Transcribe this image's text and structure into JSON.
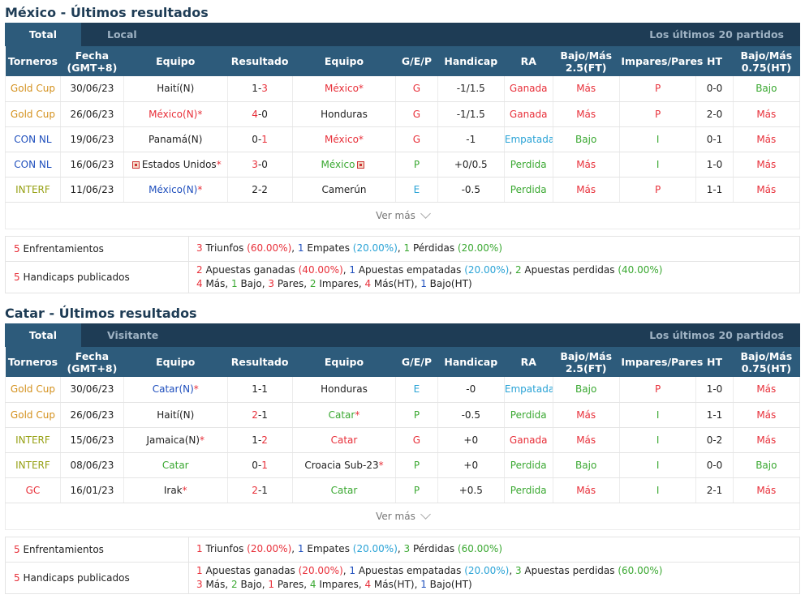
{
  "mexico": {
    "title": "México - Últimos resultados",
    "tabs": {
      "active": "Total",
      "inactive": "Local",
      "right": "Los últimos 20 partidos"
    },
    "headers": [
      "Torneros",
      "Fecha\n(GMT+8)",
      "Equipo",
      "Resultado",
      "Equipo",
      "G/E/P",
      "Handicap",
      "RA",
      "Bajo/Más\n2.5(FT)",
      "Impares/Pares",
      "HT",
      "Bajo/Más\n0.75(HT)"
    ],
    "rows": [
      {
        "torneo": "Gold Cup",
        "torneo_color": "gold",
        "fecha": "30/06/23",
        "home": "Haití(N)",
        "home_color": "dark",
        "home_star": "",
        "home_flag": false,
        "res_a": "1",
        "res_b": "3",
        "res_a_color": "dark",
        "res_b_color": "red",
        "away": "México",
        "away_color": "red",
        "away_star": "*",
        "away_flag": false,
        "gep": "G",
        "gep_color": "red",
        "handicap": "-1/1.5",
        "ra": "Ganada",
        "ra_color": "red",
        "bm": "Más",
        "bm_color": "red",
        "ip": "P",
        "ip_color": "red",
        "ht": "0-0",
        "bmht": "Bajo",
        "bmht_color": "green"
      },
      {
        "torneo": "Gold Cup",
        "torneo_color": "gold",
        "fecha": "26/06/23",
        "home": "México(N)",
        "home_color": "red",
        "home_star": "*",
        "home_flag": false,
        "res_a": "4",
        "res_b": "0",
        "res_a_color": "red",
        "res_b_color": "dark",
        "away": "Honduras",
        "away_color": "dark",
        "away_star": "",
        "away_flag": false,
        "gep": "G",
        "gep_color": "red",
        "handicap": "-1/1.5",
        "ra": "Ganada",
        "ra_color": "red",
        "bm": "Más",
        "bm_color": "red",
        "ip": "P",
        "ip_color": "red",
        "ht": "2-0",
        "bmht": "Más",
        "bmht_color": "red"
      },
      {
        "torneo": "CON NL",
        "torneo_color": "blue",
        "fecha": "19/06/23",
        "home": "Panamá(N)",
        "home_color": "dark",
        "home_star": "",
        "home_flag": false,
        "res_a": "0",
        "res_b": "1",
        "res_a_color": "dark",
        "res_b_color": "red",
        "away": "México",
        "away_color": "red",
        "away_star": "*",
        "away_flag": false,
        "gep": "G",
        "gep_color": "red",
        "handicap": "-1",
        "ra": "Empatada",
        "ra_color": "cyan",
        "bm": "Bajo",
        "bm_color": "green",
        "ip": "I",
        "ip_color": "green",
        "ht": "0-1",
        "bmht": "Más",
        "bmht_color": "red"
      },
      {
        "torneo": "CON NL",
        "torneo_color": "blue",
        "fecha": "16/06/23",
        "home": "Estados Unidos",
        "home_color": "dark",
        "home_star": "*",
        "home_flag": true,
        "res_a": "3",
        "res_b": "0",
        "res_a_color": "red",
        "res_b_color": "dark",
        "away": "México",
        "away_color": "green",
        "away_star": "",
        "away_flag": true,
        "gep": "P",
        "gep_color": "green",
        "handicap": "+0/0.5",
        "ra": "Perdida",
        "ra_color": "green",
        "bm": "Más",
        "bm_color": "red",
        "ip": "I",
        "ip_color": "green",
        "ht": "1-0",
        "bmht": "Más",
        "bmht_color": "red"
      },
      {
        "torneo": "INTERF",
        "torneo_color": "olive",
        "fecha": "11/06/23",
        "home": "México(N)",
        "home_color": "blue",
        "home_star": "*",
        "home_flag": false,
        "res_a": "2",
        "res_b": "2",
        "res_a_color": "dark",
        "res_b_color": "dark",
        "away": "Camerún",
        "away_color": "dark",
        "away_star": "",
        "away_flag": false,
        "gep": "E",
        "gep_color": "cyan",
        "handicap": "-0.5",
        "ra": "Perdida",
        "ra_color": "green",
        "bm": "Más",
        "bm_color": "red",
        "ip": "P",
        "ip_color": "red",
        "ht": "1-1",
        "bmht": "Más",
        "bmht_color": "red"
      }
    ],
    "ver_mas": "Ver más",
    "summary": {
      "enf_label": "Enfrentamientos",
      "enf_count": "5",
      "enf": {
        "w": "3",
        "w_txt": " Triunfos ",
        "w_pct": "(60.00%)",
        "d": "1",
        "d_txt": " Empates ",
        "d_pct": "(20.00%)",
        "l": "1",
        "l_txt": " Pérdidas ",
        "l_pct": "(20.00%)"
      },
      "hcp_label": "Handicaps publicados",
      "hcp_count": "5",
      "hcp": {
        "w": "2",
        "w_txt": " Apuestas ganadas ",
        "w_pct": "(40.00%)",
        "d": "1",
        "d_txt": " Apuestas empatadas ",
        "d_pct": "(20.00%)",
        "l": "2",
        "l_txt": " Apuestas perdidas ",
        "l_pct": "(40.00%)"
      },
      "line2": {
        "a": "4",
        "a_txt": " Más, ",
        "b": "1",
        "b_txt": " Bajo, ",
        "c": "3",
        "c_txt": " Pares, ",
        "d": "2",
        "d_txt": " Impares, ",
        "e": "4",
        "e_txt": " Más(HT), ",
        "f": "1",
        "f_txt": " Bajo(HT)"
      }
    }
  },
  "catar": {
    "title": "Catar - Últimos resultados",
    "tabs": {
      "active": "Total",
      "inactive": "Visitante",
      "right": "Los últimos 20 partidos"
    },
    "headers": [
      "Torneros",
      "Fecha\n(GMT+8)",
      "Equipo",
      "Resultado",
      "Equipo",
      "G/E/P",
      "Handicap",
      "RA",
      "Bajo/Más\n2.5(FT)",
      "Impares/Pares",
      "HT",
      "Bajo/Más\n0.75(HT)"
    ],
    "rows": [
      {
        "torneo": "Gold Cup",
        "torneo_color": "gold",
        "fecha": "30/06/23",
        "home": "Catar(N)",
        "home_color": "blue",
        "home_star": "*",
        "home_flag": false,
        "res_a": "1",
        "res_b": "1",
        "res_a_color": "dark",
        "res_b_color": "dark",
        "away": "Honduras",
        "away_color": "dark",
        "away_star": "",
        "away_flag": false,
        "gep": "E",
        "gep_color": "cyan",
        "handicap": "-0",
        "ra": "Empatada",
        "ra_color": "cyan",
        "bm": "Bajo",
        "bm_color": "green",
        "ip": "P",
        "ip_color": "red",
        "ht": "1-0",
        "bmht": "Más",
        "bmht_color": "red"
      },
      {
        "torneo": "Gold Cup",
        "torneo_color": "gold",
        "fecha": "26/06/23",
        "home": "Haití(N)",
        "home_color": "dark",
        "home_star": "",
        "home_flag": false,
        "res_a": "2",
        "res_b": "1",
        "res_a_color": "red",
        "res_b_color": "dark",
        "away": "Catar",
        "away_color": "green",
        "away_star": "*",
        "away_flag": false,
        "gep": "P",
        "gep_color": "green",
        "handicap": "-0.5",
        "ra": "Perdida",
        "ra_color": "green",
        "bm": "Más",
        "bm_color": "red",
        "ip": "I",
        "ip_color": "green",
        "ht": "1-1",
        "bmht": "Más",
        "bmht_color": "red"
      },
      {
        "torneo": "INTERF",
        "torneo_color": "olive",
        "fecha": "15/06/23",
        "home": "Jamaica(N)",
        "home_color": "dark",
        "home_star": "*",
        "home_flag": false,
        "res_a": "1",
        "res_b": "2",
        "res_a_color": "dark",
        "res_b_color": "red",
        "away": "Catar",
        "away_color": "red",
        "away_star": "",
        "away_flag": false,
        "gep": "G",
        "gep_color": "red",
        "handicap": "+0",
        "ra": "Ganada",
        "ra_color": "red",
        "bm": "Más",
        "bm_color": "red",
        "ip": "I",
        "ip_color": "green",
        "ht": "0-2",
        "bmht": "Más",
        "bmht_color": "red"
      },
      {
        "torneo": "INTERF",
        "torneo_color": "olive",
        "fecha": "08/06/23",
        "home": "Catar",
        "home_color": "green",
        "home_star": "",
        "home_flag": false,
        "res_a": "0",
        "res_b": "1",
        "res_a_color": "dark",
        "res_b_color": "red",
        "away": "Croacia Sub-23",
        "away_color": "dark",
        "away_star": "*",
        "away_flag": false,
        "gep": "P",
        "gep_color": "green",
        "handicap": "+0",
        "ra": "Perdida",
        "ra_color": "green",
        "bm": "Bajo",
        "bm_color": "green",
        "ip": "I",
        "ip_color": "green",
        "ht": "0-0",
        "bmht": "Bajo",
        "bmht_color": "green"
      },
      {
        "torneo": "GC",
        "torneo_color": "red",
        "fecha": "16/01/23",
        "home": "Irak",
        "home_color": "dark",
        "home_star": "*",
        "home_flag": false,
        "res_a": "2",
        "res_b": "1",
        "res_a_color": "red",
        "res_b_color": "dark",
        "away": "Catar",
        "away_color": "green",
        "away_star": "",
        "away_flag": false,
        "gep": "P",
        "gep_color": "green",
        "handicap": "+0.5",
        "ra": "Perdida",
        "ra_color": "green",
        "bm": "Más",
        "bm_color": "red",
        "ip": "I",
        "ip_color": "green",
        "ht": "2-1",
        "bmht": "Más",
        "bmht_color": "red"
      }
    ],
    "ver_mas": "Ver más",
    "summary": {
      "enf_label": "Enfrentamientos",
      "enf_count": "5",
      "enf": {
        "w": "1",
        "w_txt": " Triunfos ",
        "w_pct": "(20.00%)",
        "d": "1",
        "d_txt": " Empates ",
        "d_pct": "(20.00%)",
        "l": "3",
        "l_txt": " Pérdidas ",
        "l_pct": "(60.00%)"
      },
      "hcp_label": "Handicaps publicados",
      "hcp_count": "5",
      "hcp": {
        "w": "1",
        "w_txt": " Apuestas ganadas ",
        "w_pct": "(20.00%)",
        "d": "1",
        "d_txt": " Apuestas empatadas ",
        "d_pct": "(20.00%)",
        "l": "3",
        "l_txt": " Apuestas perdidas ",
        "l_pct": "(60.00%)"
      },
      "line2": {
        "a": "3",
        "a_txt": " Más, ",
        "b": "2",
        "b_txt": " Bajo, ",
        "c": "1",
        "c_txt": " Pares, ",
        "d": "4",
        "d_txt": " Impares, ",
        "e": "4",
        "e_txt": " Más(HT), ",
        "f": "1",
        "f_txt": " Bajo(HT)"
      }
    }
  }
}
